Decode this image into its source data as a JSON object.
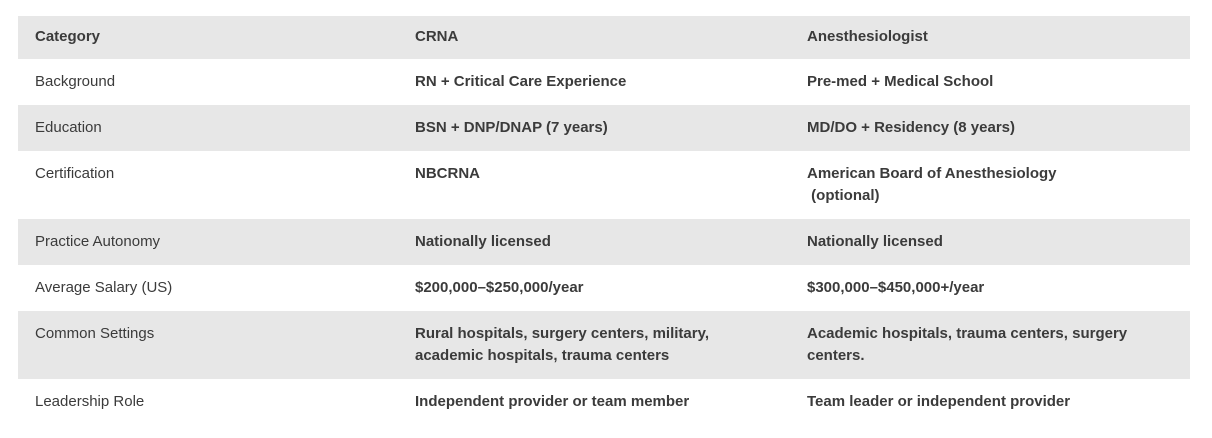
{
  "colors": {
    "background": "#ffffff",
    "row_stripe": "#e7e7e7",
    "text": "#3b3b3b"
  },
  "table": {
    "columns": {
      "category": "Category",
      "crna": "CRNA",
      "anesthesiologist": "Anesthesiologist"
    },
    "rows": [
      {
        "category": "Background",
        "crna": "RN + Critical Care Experience",
        "anesthesiologist": "Pre-med + Medical School"
      },
      {
        "category": "Education",
        "crna": "BSN + DNP/DNAP (7 years)",
        "anesthesiologist": "MD/DO + Residency (8 years)"
      },
      {
        "category": "Certification",
        "crna": "NBCRNA",
        "anesthesiologist": "American Board of Anesthesiology\n (optional)"
      },
      {
        "category": "Practice Autonomy",
        "crna": "Nationally licensed",
        "anesthesiologist": "Nationally licensed"
      },
      {
        "category": "Average Salary (US)",
        "crna": "$200,000–$250,000/year",
        "anesthesiologist": "$300,000–$450,000+/year"
      },
      {
        "category": "Common Settings",
        "crna": "Rural hospitals, surgery centers, military, academic hospitals, trauma centers",
        "anesthesiologist": "Academic hospitals, trauma centers, surgery centers."
      },
      {
        "category": "Leadership Role",
        "crna": "Independent provider or team member",
        "anesthesiologist": "Team leader or independent provider"
      }
    ]
  }
}
